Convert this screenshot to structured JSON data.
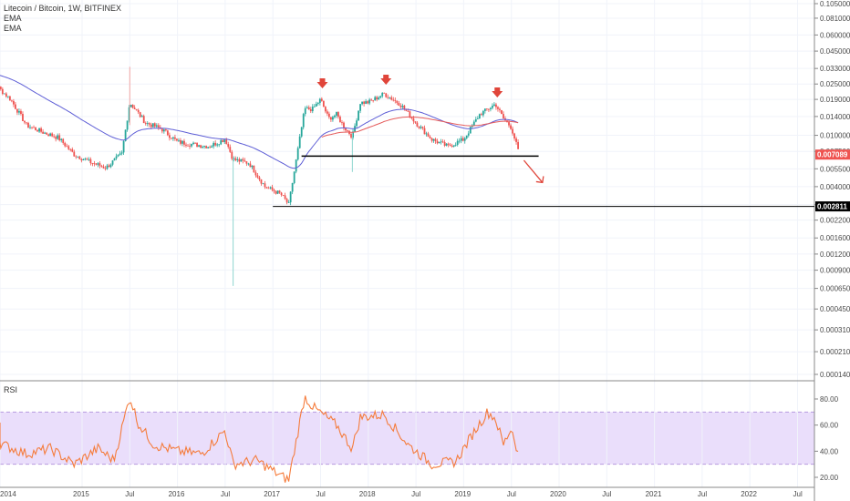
{
  "header": {
    "title": "Litecoin / Bitcoin, 1W, BITFINEX",
    "ema1": "EMA",
    "ema2": "EMA"
  },
  "rsi_label": "RSI",
  "price_badges": {
    "current": "0.007089",
    "support": "0.002811"
  },
  "colors": {
    "up": "#26a69a",
    "down": "#ef5350",
    "ema_fast": "#e55b5b",
    "ema_slow": "#5f5fd6",
    "rsi_line": "#f57c3c",
    "rsi_band": "#e9dcfb",
    "arrow": "#e0453a",
    "current_badge": "#ef5350",
    "support_badge": "#000000"
  },
  "chart_data": [
    {
      "type": "candlestick",
      "title": "Litecoin / Bitcoin, 1W, BITFINEX",
      "y_scale": "log",
      "y_ticks": [
        "0.105000",
        "0.081000",
        "0.060000",
        "0.045000",
        "0.033000",
        "0.025000",
        "0.019000",
        "0.014000",
        "0.010000",
        "0.007500",
        "0.005500",
        "0.004000",
        "0.002900",
        "0.002200",
        "0.001600",
        "0.001200",
        "0.000900",
        "0.000650",
        "0.000450",
        "0.000310",
        "0.000210",
        "0.000140"
      ],
      "x_ticks": [
        "2014",
        "2015",
        "Jul",
        "2016",
        "Jul",
        "2017",
        "Jul",
        "2018",
        "Jul",
        "2019",
        "Jul",
        "2020",
        "Jul",
        "2021",
        "Jul",
        "2022",
        "Jul"
      ],
      "ylim": [
        0.000125,
        0.115
      ],
      "date_range": [
        "2013-12",
        "2022-12"
      ],
      "series_close": [
        {
          "date": "2013-12",
          "value": 0.031
        },
        {
          "date": "2014-02",
          "value": 0.025
        },
        {
          "date": "2014-04",
          "value": 0.019
        },
        {
          "date": "2014-06",
          "value": 0.012
        },
        {
          "date": "2014-08",
          "value": 0.0106
        },
        {
          "date": "2014-10",
          "value": 0.0096
        },
        {
          "date": "2014-12",
          "value": 0.0071
        },
        {
          "date": "2015-02",
          "value": 0.0062
        },
        {
          "date": "2015-04",
          "value": 0.0056
        },
        {
          "date": "2015-06",
          "value": 0.0072
        },
        {
          "date": "2015-07",
          "value": 0.018
        },
        {
          "date": "2015-09",
          "value": 0.0125
        },
        {
          "date": "2015-11",
          "value": 0.0112
        },
        {
          "date": "2016-01",
          "value": 0.0089
        },
        {
          "date": "2016-03",
          "value": 0.0085
        },
        {
          "date": "2016-05",
          "value": 0.0082
        },
        {
          "date": "2016-07",
          "value": 0.0094
        },
        {
          "date": "2016-08",
          "value": 0.0065
        },
        {
          "date": "2016-10",
          "value": 0.0061
        },
        {
          "date": "2016-12",
          "value": 0.004
        },
        {
          "date": "2017-02",
          "value": 0.0035
        },
        {
          "date": "2017-03",
          "value": 0.0029
        },
        {
          "date": "2017-04",
          "value": 0.0068
        },
        {
          "date": "2017-05",
          "value": 0.016
        },
        {
          "date": "2017-06",
          "value": 0.016
        },
        {
          "date": "2017-07",
          "value": 0.019
        },
        {
          "date": "2017-08",
          "value": 0.0135
        },
        {
          "date": "2017-09",
          "value": 0.0145
        },
        {
          "date": "2017-10",
          "value": 0.0115
        },
        {
          "date": "2017-11",
          "value": 0.0098
        },
        {
          "date": "2017-12",
          "value": 0.018
        },
        {
          "date": "2018-01",
          "value": 0.018
        },
        {
          "date": "2018-03",
          "value": 0.021
        },
        {
          "date": "2018-05",
          "value": 0.0175
        },
        {
          "date": "2018-07",
          "value": 0.0125
        },
        {
          "date": "2018-09",
          "value": 0.0093
        },
        {
          "date": "2018-11",
          "value": 0.0082
        },
        {
          "date": "2019-01",
          "value": 0.0093
        },
        {
          "date": "2019-03",
          "value": 0.0145
        },
        {
          "date": "2019-05",
          "value": 0.0175
        },
        {
          "date": "2019-06",
          "value": 0.0135
        },
        {
          "date": "2019-07",
          "value": 0.0115
        },
        {
          "date": "2019-08",
          "value": 0.0071
        }
      ],
      "series": [
        {
          "name": "EMA",
          "style": "fast",
          "values_desc": "approx. 0.013 in 2017-07 rising to 0.013–0.014 band through 2019"
        },
        {
          "name": "EMA",
          "style": "slow",
          "values_desc": "from 0.021 in 2014 declining to 0.005 in 2017-03, then rising to ~0.014 in 2018"
        }
      ],
      "annotations": {
        "support_line": 0.0069,
        "long_term_line": 0.002811,
        "current_price": 0.007089,
        "down_markers": [
          "2017-07",
          "2018-03",
          "2019-05"
        ],
        "projection_arrow": "down from 2019-08 toward 0.0045"
      }
    },
    {
      "type": "line",
      "title": "RSI",
      "y_ticks": [
        "80.00",
        "60.00",
        "40.00",
        "20.00"
      ],
      "ylim": [
        14,
        92
      ],
      "bands": [
        30,
        70
      ],
      "series": [
        {
          "date": "2013-12",
          "value": 60
        },
        {
          "date": "2014-03",
          "value": 45
        },
        {
          "date": "2014-06",
          "value": 38
        },
        {
          "date": "2014-09",
          "value": 42
        },
        {
          "date": "2014-12",
          "value": 30
        },
        {
          "date": "2015-03",
          "value": 42
        },
        {
          "date": "2015-05",
          "value": 33
        },
        {
          "date": "2015-07",
          "value": 82
        },
        {
          "date": "2015-08",
          "value": 62
        },
        {
          "date": "2015-10",
          "value": 45
        },
        {
          "date": "2016-01",
          "value": 40
        },
        {
          "date": "2016-04",
          "value": 38
        },
        {
          "date": "2016-07",
          "value": 56
        },
        {
          "date": "2016-08",
          "value": 30
        },
        {
          "date": "2016-11",
          "value": 33
        },
        {
          "date": "2017-02",
          "value": 21
        },
        {
          "date": "2017-03",
          "value": 18
        },
        {
          "date": "2017-05",
          "value": 82
        },
        {
          "date": "2017-06",
          "value": 74
        },
        {
          "date": "2017-09",
          "value": 60
        },
        {
          "date": "2017-11",
          "value": 42
        },
        {
          "date": "2017-12",
          "value": 66
        },
        {
          "date": "2018-03",
          "value": 68
        },
        {
          "date": "2018-06",
          "value": 45
        },
        {
          "date": "2018-09",
          "value": 30
        },
        {
          "date": "2018-12",
          "value": 32
        },
        {
          "date": "2019-02",
          "value": 52
        },
        {
          "date": "2019-04",
          "value": 70
        },
        {
          "date": "2019-05",
          "value": 65
        },
        {
          "date": "2019-06",
          "value": 45
        },
        {
          "date": "2019-07",
          "value": 58
        },
        {
          "date": "2019-08",
          "value": 35
        }
      ]
    }
  ]
}
